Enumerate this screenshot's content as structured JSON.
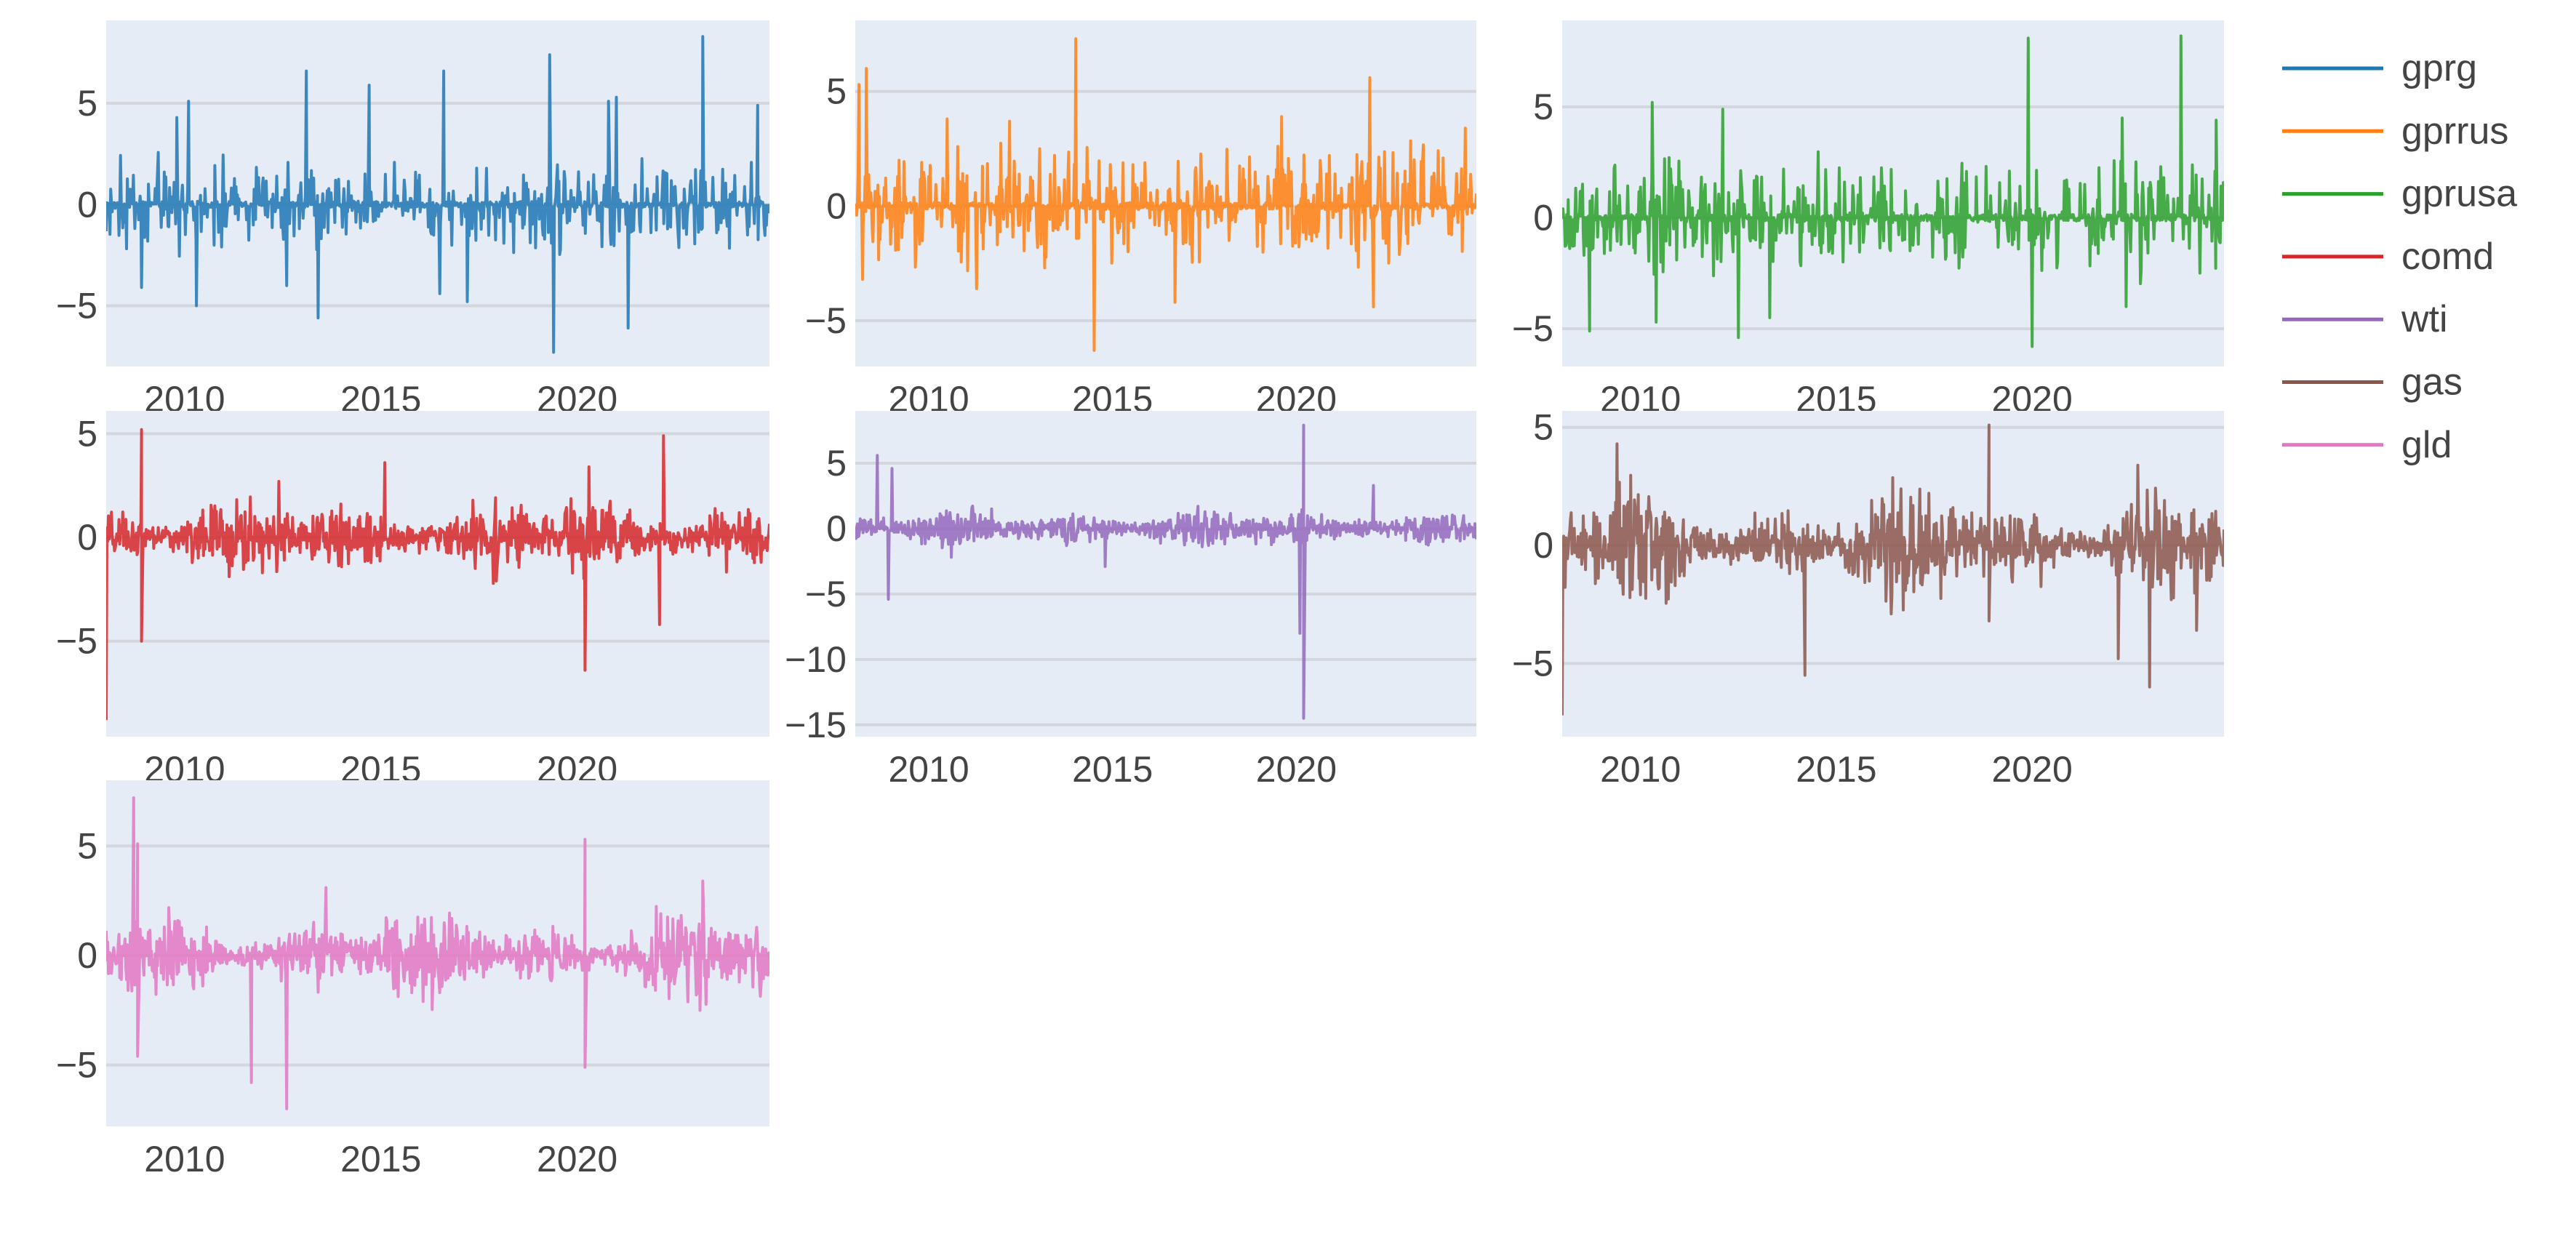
{
  "figure": {
    "background": "#ffffff",
    "plot_background": "#e5ecf6",
    "grid_color": "#d3d6dc",
    "tick_color": "#444444"
  },
  "legend": {
    "items": [
      {
        "label": "gprg",
        "color": "#1f77b4"
      },
      {
        "label": "gprrus",
        "color": "#ff7f0e"
      },
      {
        "label": "gprusa",
        "color": "#2ca02c"
      },
      {
        "label": "comd",
        "color": "#d62728"
      },
      {
        "label": "wti",
        "color": "#9467bd"
      },
      {
        "label": "gas",
        "color": "#8c564b"
      },
      {
        "label": "gld",
        "color": "#e377c2"
      }
    ]
  },
  "chart_data": [
    {
      "type": "line",
      "title": "",
      "series_name": "gprg",
      "color": "#1f77b4",
      "row": 1,
      "col": 1,
      "kind": "sparse",
      "xlim": [
        2008.0,
        2024.9
      ],
      "ylim": [
        -8.0,
        9.1
      ],
      "xticks": [
        2010,
        2015,
        2020
      ],
      "yticks": [
        -5,
        0,
        5
      ],
      "ytick_labels": [
        "−5",
        "0",
        "5"
      ],
      "grid": true,
      "noise_amplitude": 1.8,
      "spikes": [
        [
          2008.9,
          -4.1
        ],
        [
          2010.3,
          -5.0
        ],
        [
          2010.1,
          5.1
        ],
        [
          2009.8,
          4.3
        ],
        [
          2012.6,
          -4.0
        ],
        [
          2013.1,
          6.6
        ],
        [
          2013.4,
          -5.6
        ],
        [
          2014.7,
          5.9
        ],
        [
          2016.6,
          6.6
        ],
        [
          2016.5,
          -4.4
        ],
        [
          2017.2,
          -4.8
        ],
        [
          2019.3,
          7.4
        ],
        [
          2019.4,
          -7.3
        ],
        [
          2021.3,
          -6.1
        ],
        [
          2020.8,
          5.1
        ],
        [
          2021.0,
          5.3
        ],
        [
          2023.2,
          8.3
        ],
        [
          2024.6,
          4.9
        ]
      ]
    },
    {
      "type": "line",
      "title": "",
      "series_name": "gprrus",
      "color": "#ff7f0e",
      "row": 1,
      "col": 2,
      "kind": "sparse",
      "xlim": [
        2008.0,
        2024.9
      ],
      "ylim": [
        -7.0,
        8.1
      ],
      "xticks": [
        2010,
        2015,
        2020
      ],
      "yticks": [
        -5,
        0,
        5
      ],
      "ytick_labels": [
        "−5",
        "0",
        "5"
      ],
      "grid": true,
      "noise_amplitude": 2.0,
      "spikes": [
        [
          2008.1,
          5.3
        ],
        [
          2008.3,
          6.0
        ],
        [
          2008.2,
          -3.2
        ],
        [
          2010.5,
          3.8
        ],
        [
          2011.3,
          -3.6
        ],
        [
          2012.2,
          3.7
        ],
        [
          2014.0,
          7.3
        ],
        [
          2014.5,
          -6.3
        ],
        [
          2016.7,
          -4.2
        ],
        [
          2019.6,
          3.9
        ],
        [
          2022.0,
          5.6
        ],
        [
          2022.1,
          -4.4
        ],
        [
          2024.6,
          3.4
        ]
      ]
    },
    {
      "type": "line",
      "title": "",
      "series_name": "gprusa",
      "color": "#2ca02c",
      "row": 1,
      "col": 3,
      "kind": "sparse",
      "xlim": [
        2008.0,
        2024.9
      ],
      "ylim": [
        -6.7,
        8.9
      ],
      "xticks": [
        2010,
        2015,
        2020
      ],
      "yticks": [
        -5,
        0,
        5
      ],
      "ytick_labels": [
        "−5",
        "0",
        "5"
      ],
      "grid": true,
      "noise_amplitude": 2.0,
      "spikes": [
        [
          2008.7,
          -5.1
        ],
        [
          2010.4,
          -4.7
        ],
        [
          2010.3,
          5.2
        ],
        [
          2012.1,
          4.9
        ],
        [
          2012.5,
          -5.4
        ],
        [
          2013.3,
          -4.5
        ],
        [
          2019.9,
          8.1
        ],
        [
          2020.0,
          -5.8
        ],
        [
          2022.3,
          4.5
        ],
        [
          2022.4,
          -4.0
        ],
        [
          2023.8,
          8.2
        ],
        [
          2024.7,
          4.4
        ]
      ]
    },
    {
      "type": "line",
      "title": "",
      "series_name": "comd",
      "color": "#d62728",
      "row": 2,
      "col": 1,
      "kind": "dense",
      "xlim": [
        2008.0,
        2024.9
      ],
      "ylim": [
        -9.6,
        6.1
      ],
      "xticks": [
        2010,
        2015,
        2020
      ],
      "yticks": [
        -5,
        0,
        5
      ],
      "ytick_labels": [
        "−5",
        "0",
        "5"
      ],
      "grid": true,
      "noise_amplitude": 1.2,
      "spikes": [
        [
          2008.0,
          -8.8
        ],
        [
          2008.9,
          5.2
        ],
        [
          2008.9,
          -5.0
        ],
        [
          2012.4,
          2.7
        ],
        [
          2015.1,
          3.6
        ],
        [
          2020.2,
          -6.4
        ],
        [
          2020.3,
          3.4
        ],
        [
          2022.2,
          4.9
        ],
        [
          2022.1,
          -4.2
        ]
      ]
    },
    {
      "type": "line",
      "title": "",
      "series_name": "wti",
      "color": "#9467bd",
      "row": 2,
      "col": 2,
      "kind": "dense",
      "xlim": [
        2008.0,
        2024.9
      ],
      "ylim": [
        -15.9,
        9.0
      ],
      "xticks": [
        2010,
        2015,
        2020
      ],
      "yticks": [
        -15,
        -10,
        -5,
        0,
        5
      ],
      "ytick_labels": [
        "−15",
        "−10",
        "−5",
        "0",
        "5"
      ],
      "grid": true,
      "noise_amplitude": 1.0,
      "spikes": [
        [
          2008.6,
          5.6
        ],
        [
          2008.9,
          -5.4
        ],
        [
          2009.0,
          4.6
        ],
        [
          2014.8,
          -2.9
        ],
        [
          2020.2,
          7.9
        ],
        [
          2020.2,
          -14.5
        ],
        [
          2020.1,
          -8.0
        ],
        [
          2022.1,
          3.3
        ]
      ]
    },
    {
      "type": "line",
      "title": "",
      "series_name": "gas",
      "color": "#8c564b",
      "row": 2,
      "col": 3,
      "kind": "dense",
      "xlim": [
        2008.0,
        2024.9
      ],
      "ylim": [
        -8.1,
        5.7
      ],
      "xticks": [
        2010,
        2015,
        2020
      ],
      "yticks": [
        -5,
        0,
        5
      ],
      "ytick_labels": [
        "−5",
        "0",
        "5"
      ],
      "grid": true,
      "noise_amplitude": 1.5,
      "spikes": [
        [
          2008.0,
          -7.2
        ],
        [
          2009.4,
          4.3
        ],
        [
          2014.2,
          -5.5
        ],
        [
          2018.9,
          5.1
        ],
        [
          2018.9,
          -3.2
        ],
        [
          2022.2,
          -4.8
        ],
        [
          2023.0,
          -6.0
        ],
        [
          2022.7,
          3.4
        ],
        [
          2024.2,
          -3.6
        ]
      ]
    },
    {
      "type": "line",
      "title": "",
      "series_name": "gld",
      "color": "#e377c2",
      "row": 3,
      "col": 1,
      "kind": "dense",
      "xlim": [
        2008.0,
        2024.9
      ],
      "ylim": [
        -7.8,
        8.0
      ],
      "xticks": [
        2010,
        2015,
        2020
      ],
      "yticks": [
        -5,
        0,
        5
      ],
      "ytick_labels": [
        "−5",
        "0",
        "5"
      ],
      "grid": true,
      "noise_amplitude": 1.3,
      "spikes": [
        [
          2008.7,
          7.2
        ],
        [
          2008.8,
          5.1
        ],
        [
          2008.8,
          -4.6
        ],
        [
          2011.7,
          -5.8
        ],
        [
          2012.6,
          -7.0
        ],
        [
          2013.6,
          3.1
        ],
        [
          2020.2,
          5.3
        ],
        [
          2020.2,
          -5.1
        ],
        [
          2023.2,
          3.4
        ]
      ]
    }
  ]
}
